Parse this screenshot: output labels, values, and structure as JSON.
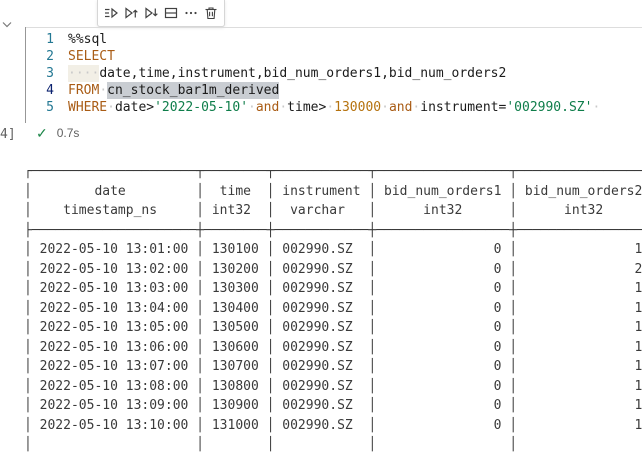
{
  "cell_toolbar": {
    "buttons": [
      {
        "name": "run-by-line"
      },
      {
        "name": "execute-above"
      },
      {
        "name": "execute-below"
      },
      {
        "name": "split-cell"
      },
      {
        "name": "more-actions"
      },
      {
        "name": "delete-cell"
      }
    ]
  },
  "code": {
    "lines": [
      {
        "num": "1",
        "active": false,
        "tokens": [
          [
            "plain",
            "%%sql"
          ]
        ]
      },
      {
        "num": "2",
        "active": false,
        "tokens": [
          [
            "kw",
            "SELECT"
          ]
        ]
      },
      {
        "num": "3",
        "active": false,
        "tokens": [
          [
            "indent",
            "····"
          ],
          [
            "plain",
            "date,time,instrument,bid_num_orders1,bid_num_orders2"
          ]
        ]
      },
      {
        "num": "4",
        "active": true,
        "tokens": [
          [
            "kw",
            "FROM"
          ],
          [
            "ws",
            "·"
          ],
          [
            "sel",
            "cn_stock_bar1m_derived"
          ]
        ]
      },
      {
        "num": "5",
        "active": false,
        "tokens": [
          [
            "kw",
            "WHERE"
          ],
          [
            "ws",
            "·"
          ],
          [
            "plain",
            "date>"
          ],
          [
            "str",
            "'2022-05-10'"
          ],
          [
            "ws",
            "·"
          ],
          [
            "kw",
            "and"
          ],
          [
            "ws",
            "·"
          ],
          [
            "plain",
            "time>"
          ],
          [
            "ws",
            "·"
          ],
          [
            "num",
            "130000"
          ],
          [
            "ws",
            "·"
          ],
          [
            "kw",
            "and"
          ],
          [
            "ws",
            "·"
          ],
          [
            "plain",
            "instrument="
          ],
          [
            "str",
            "'002990.SZ'"
          ],
          [
            "ws",
            "·"
          ]
        ]
      }
    ]
  },
  "execution": {
    "count_label": "4]",
    "check": "✓",
    "duration": "0.7s"
  },
  "table": {
    "columns": [
      {
        "name": "date",
        "type": "timestamp_ns",
        "width": 21,
        "align": "left"
      },
      {
        "name": "time",
        "type": "int32",
        "width": 8,
        "align": "right"
      },
      {
        "name": "instrument",
        "type": "varchar",
        "width": 12,
        "align": "left"
      },
      {
        "name": "bid_num_orders1",
        "type": "int32",
        "width": 17,
        "align": "right"
      },
      {
        "name": "bid_num_orders2",
        "type": "int32",
        "width": 17,
        "align": "right"
      }
    ],
    "rows": [
      [
        "2022-05-10 13:01:00",
        "130100",
        "002990.SZ",
        "0",
        "1"
      ],
      [
        "2022-05-10 13:02:00",
        "130200",
        "002990.SZ",
        "0",
        "2"
      ],
      [
        "2022-05-10 13:03:00",
        "130300",
        "002990.SZ",
        "0",
        "1"
      ],
      [
        "2022-05-10 13:04:00",
        "130400",
        "002990.SZ",
        "0",
        "1"
      ],
      [
        "2022-05-10 13:05:00",
        "130500",
        "002990.SZ",
        "0",
        "1"
      ],
      [
        "2022-05-10 13:06:00",
        "130600",
        "002990.SZ",
        "0",
        "1"
      ],
      [
        "2022-05-10 13:07:00",
        "130700",
        "002990.SZ",
        "0",
        "1"
      ],
      [
        "2022-05-10 13:08:00",
        "130800",
        "002990.SZ",
        "0",
        "1"
      ],
      [
        "2022-05-10 13:09:00",
        "130900",
        "002990.SZ",
        "0",
        "1"
      ],
      [
        "2022-05-10 13:10:00",
        "131000",
        "002990.SZ",
        "0",
        "1"
      ],
      [
        "",
        "",
        "",
        "",
        ""
      ]
    ]
  },
  "colors": {
    "keyword": "#a95c15",
    "string": "#0e7d4a",
    "number": "#b5720e",
    "selection_highlight": "#c9cdd2",
    "success_check": "#1d8649",
    "line_number": "#237893",
    "line_number_active": "#0b216f",
    "table_text": "#3a3a3a"
  }
}
